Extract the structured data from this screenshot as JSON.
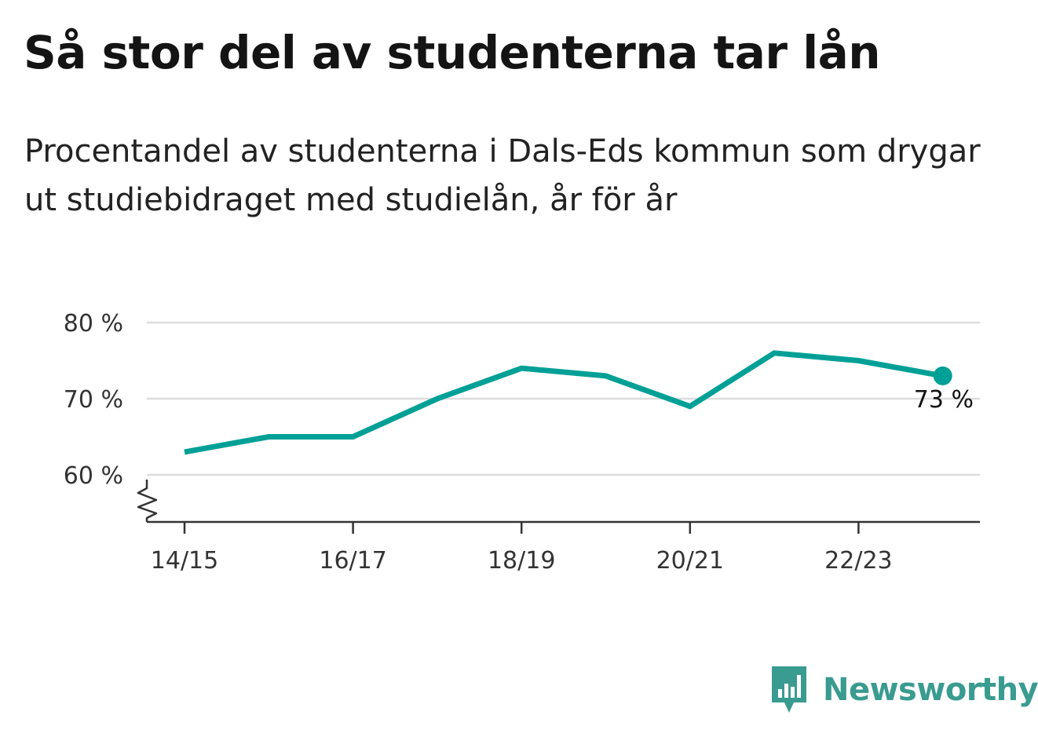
{
  "title": "Så stor del av studenterna tar lån",
  "subtitle": "Procentandel av studenterna i Dals-Eds kommun som drygar ut studiebidraget med studielån, år för år",
  "brand": {
    "name": "Newsworthy",
    "icon": "bar-chart-speech-bubble-icon"
  },
  "colors": {
    "line": "#00a096",
    "grid": "#dddddd",
    "axis": "#333333",
    "brand": "#3a9b90"
  },
  "chart_data": {
    "type": "line",
    "x": [
      "14/15",
      "15/16",
      "16/17",
      "17/18",
      "18/19",
      "19/20",
      "20/21",
      "21/22",
      "22/23",
      "23/24"
    ],
    "x_tick_labels": [
      "14/15",
      "16/17",
      "18/19",
      "20/21",
      "22/23"
    ],
    "series": [
      {
        "values": [
          63,
          65,
          65,
          70,
          74,
          73,
          69,
          76,
          75,
          73
        ]
      }
    ],
    "y_ticks": [
      60,
      70,
      80
    ],
    "y_tick_labels": [
      "60 %",
      "70 %",
      "80 %"
    ],
    "ylim": [
      54,
      80
    ],
    "y_axis_break": true,
    "grid": true,
    "end_label": "73 %",
    "unit": "%"
  }
}
